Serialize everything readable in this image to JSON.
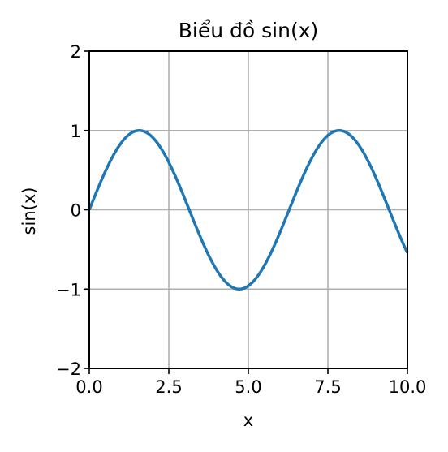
{
  "chart_data": {
    "type": "line",
    "title": "Biểu đồ sin(x)",
    "xlabel": "x",
    "ylabel": "sin(x)",
    "xlim": [
      0,
      10
    ],
    "ylim": [
      -2,
      2
    ],
    "xticks": [
      0,
      2.5,
      5,
      7.5,
      10
    ],
    "xtick_labels": [
      "0.0",
      "2.5",
      "5.0",
      "7.5",
      "10.0"
    ],
    "yticks": [
      -2,
      -1,
      0,
      1,
      2
    ],
    "ytick_labels": [
      "−2",
      "−1",
      "0",
      "1",
      "2"
    ],
    "grid": true,
    "series": [
      {
        "function": "sin(x)",
        "color": "#1f77b4",
        "x": [
          0.0,
          0.5,
          1.0,
          1.5708,
          2.0,
          2.5,
          3.0,
          3.1416,
          3.5,
          4.0,
          4.5,
          4.7124,
          5.0,
          5.5,
          6.0,
          6.2832,
          6.5,
          7.0,
          7.5,
          7.854,
          8.0,
          8.5,
          9.0,
          9.4248,
          9.5,
          10.0
        ],
        "y": [
          0.0,
          0.479,
          0.841,
          1.0,
          0.909,
          0.598,
          0.141,
          0.0,
          -0.351,
          -0.757,
          -0.978,
          -1.0,
          -0.959,
          -0.706,
          -0.279,
          0.0,
          0.215,
          0.657,
          0.938,
          1.0,
          0.989,
          0.798,
          0.412,
          0.0,
          -0.075,
          -0.544
        ]
      }
    ]
  }
}
